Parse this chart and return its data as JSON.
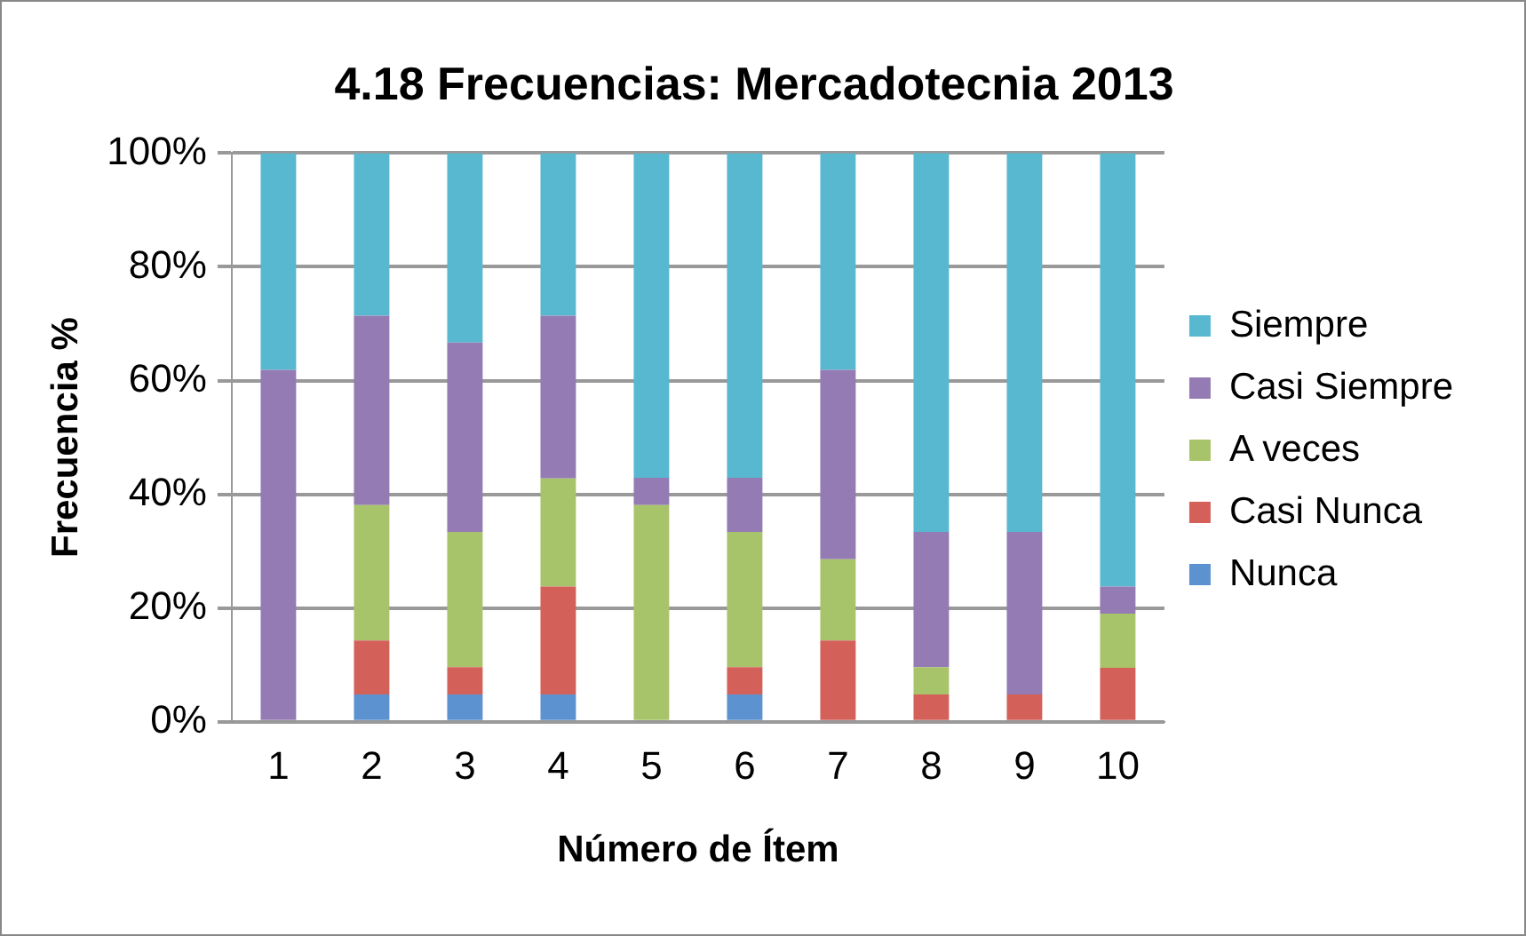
{
  "chart_data": {
    "type": "bar",
    "title": "4.18 Frecuencias: Mercadotecnia 2013",
    "xlabel": "Número de Ítem",
    "ylabel": "Frecuencia %",
    "stacked": true,
    "categories": [
      "1",
      "2",
      "3",
      "4",
      "5",
      "6",
      "7",
      "8",
      "9",
      "10"
    ],
    "series": [
      {
        "name": "Nunca",
        "color": "#5b92cf",
        "values": [
          0,
          4.8,
          4.8,
          4.8,
          0,
          4.8,
          0,
          0,
          0,
          0
        ]
      },
      {
        "name": "Casi Nunca",
        "color": "#d4605a",
        "values": [
          0,
          9.5,
          4.8,
          19,
          0,
          4.8,
          14.3,
          4.8,
          4.8,
          9.5
        ]
      },
      {
        "name": "A veces",
        "color": "#a8c46a",
        "values": [
          0,
          23.8,
          23.8,
          19,
          38.1,
          23.8,
          14.3,
          4.8,
          0,
          9.5
        ]
      },
      {
        "name": "Casi Siempre",
        "color": "#947bb3",
        "values": [
          61.9,
          33.3,
          33.3,
          28.6,
          4.8,
          9.5,
          33.3,
          23.8,
          28.6,
          4.8
        ]
      },
      {
        "name": "Siempre",
        "color": "#57b8d0",
        "values": [
          38.1,
          28.6,
          33.3,
          28.6,
          57.1,
          57.1,
          38.1,
          66.7,
          66.7,
          76.2
        ]
      }
    ],
    "ylim": [
      0,
      100
    ],
    "yticks": [
      {
        "value": 0,
        "label": "0%"
      },
      {
        "value": 20,
        "label": "20%"
      },
      {
        "value": 40,
        "label": "40%"
      },
      {
        "value": 60,
        "label": "60%"
      },
      {
        "value": 80,
        "label": "80%"
      },
      {
        "value": 100,
        "label": "100%"
      }
    ],
    "grid": "y",
    "legend": "right"
  }
}
